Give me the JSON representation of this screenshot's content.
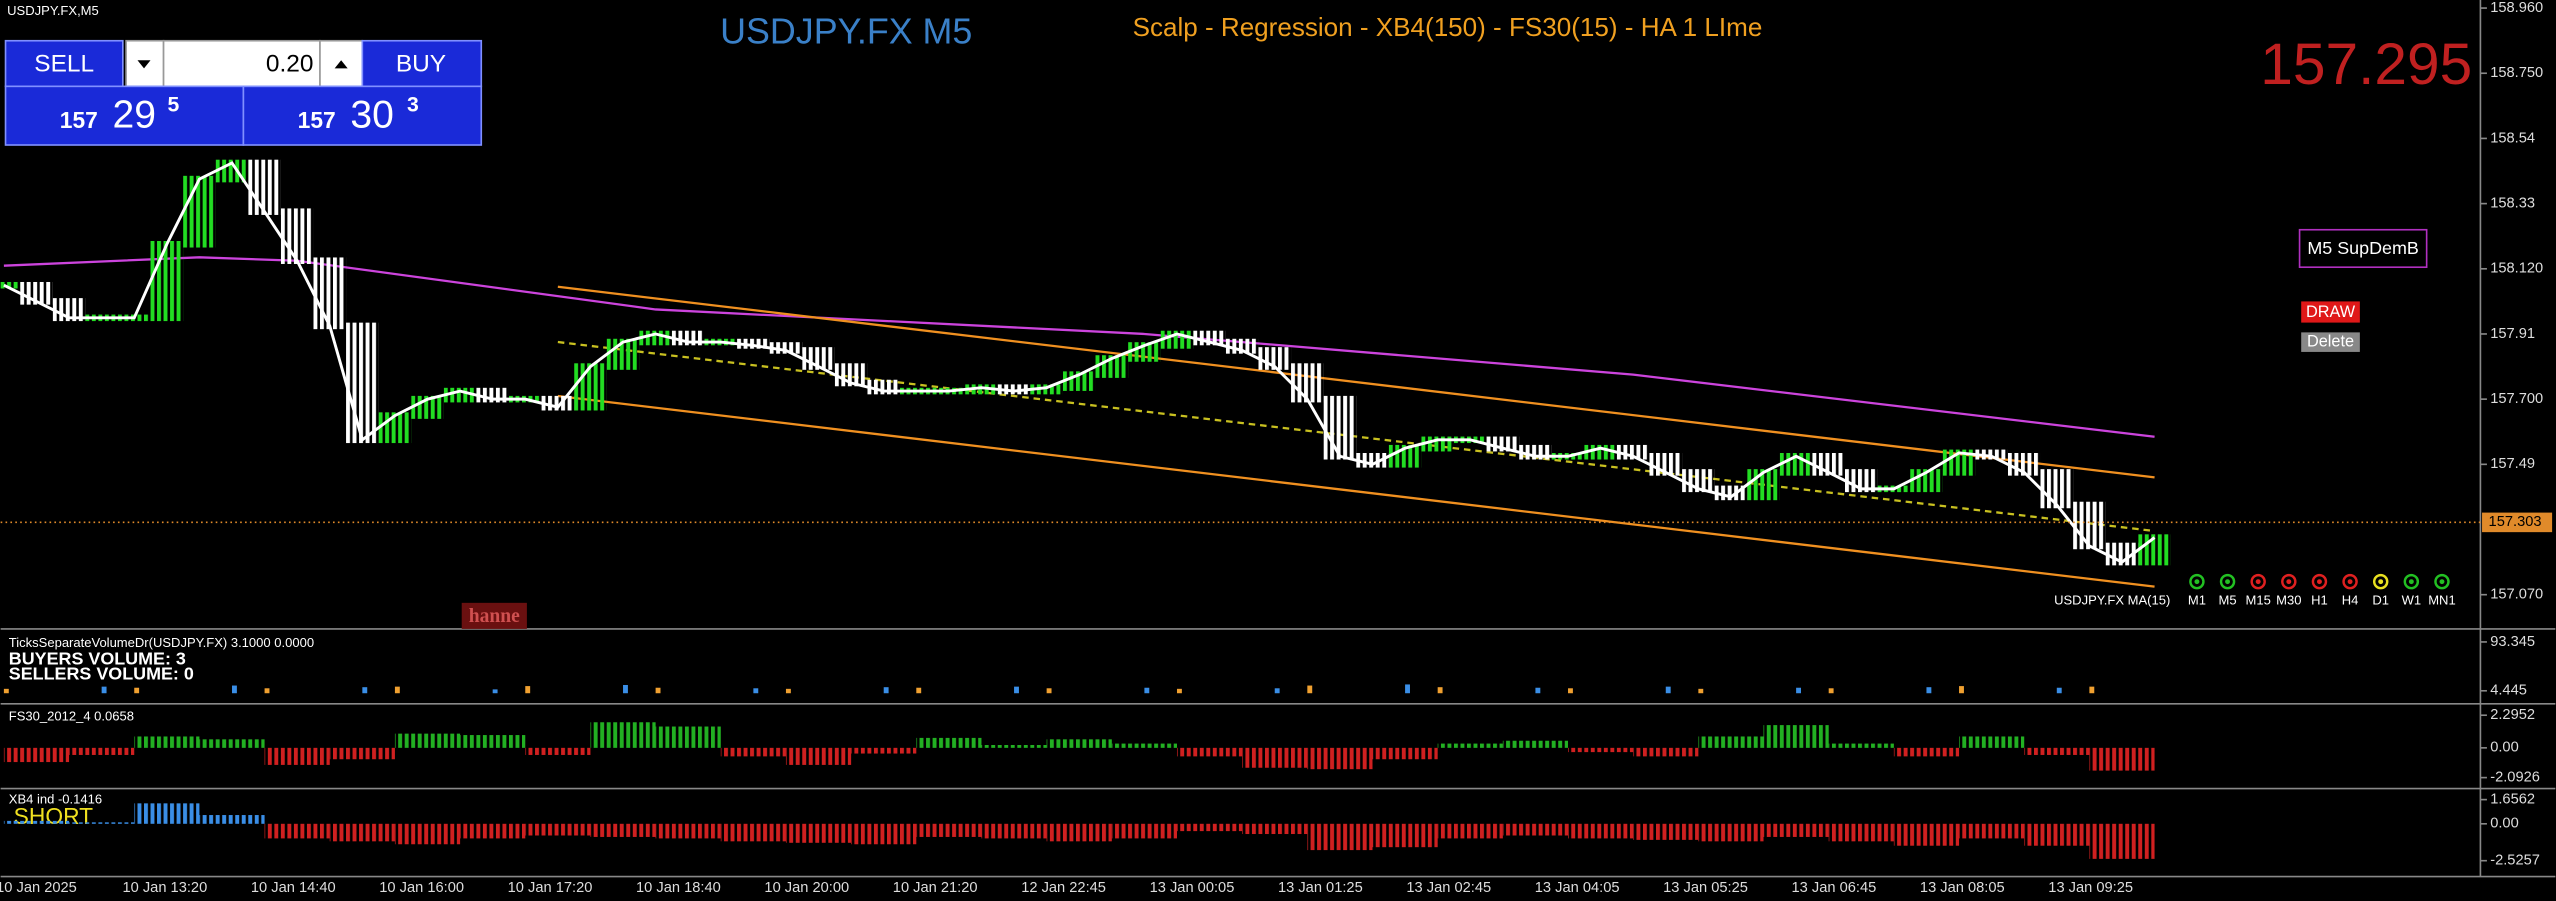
{
  "window_title": "USDJPY.FX,M5",
  "order_panel": {
    "sell": "SELL",
    "buy": "BUY",
    "volume": "0.20",
    "sell_price": {
      "prefix": "157",
      "pips": "29",
      "fraction": "5"
    },
    "buy_price": {
      "prefix": "157",
      "pips": "30",
      "fraction": "3"
    }
  },
  "last_price": "157.295",
  "supdem_label": "M5 SupDemB",
  "buttons": [
    "DRAW",
    "Delete"
  ],
  "watermark": "hanne",
  "timeframes": [
    {
      "label": "M1",
      "color": "#22c022"
    },
    {
      "label": "M5",
      "color": "#22c022"
    },
    {
      "label": "M15",
      "color": "#e02020"
    },
    {
      "label": "M30",
      "color": "#e02020"
    },
    {
      "label": "H1",
      "color": "#e02020"
    },
    {
      "label": "H4",
      "color": "#e02020"
    },
    {
      "label": "D1",
      "color": "#e8e020"
    },
    {
      "label": "W1",
      "color": "#22c022"
    },
    {
      "label": "MN1",
      "color": "#22c022"
    }
  ],
  "chart_data": [
    {
      "type": "candlestick",
      "title": "USDJPY.FX M5",
      "subtitle": "Scalp - Regression - XB4(150) - FS30(15) - HA  1 LIme",
      "ma_label": "USDJPY.FX MA(15)",
      "ma_color": "#ffffff",
      "colors": {
        "up": "#22dd22",
        "down": "#ffffff"
      },
      "values": [
        158.067,
        158.015,
        157.962,
        157.962,
        157.962,
        158.199,
        158.409,
        158.461,
        158.304,
        158.146,
        157.936,
        157.569,
        157.647,
        157.7,
        157.726,
        157.7,
        157.7,
        157.674,
        157.805,
        157.884,
        157.91,
        157.884,
        157.884,
        157.873,
        157.857,
        157.805,
        157.752,
        157.726,
        157.726,
        157.726,
        157.737,
        157.726,
        157.737,
        157.779,
        157.831,
        157.873,
        157.91,
        157.884,
        157.857,
        157.805,
        157.7,
        157.516,
        157.49,
        157.542,
        157.569,
        157.569,
        157.542,
        157.516,
        157.516,
        157.542,
        157.516,
        157.464,
        157.411,
        157.385,
        157.464,
        157.516,
        157.464,
        157.411,
        157.411,
        157.464,
        157.527,
        157.516,
        157.464,
        157.359,
        157.227,
        157.175,
        157.254
      ],
      "overlays": [
        {
          "color": "#cc44dd",
          "x": [
            0,
            6,
            9,
            20,
            35,
            50,
            66
          ],
          "values": [
            158.13,
            158.157,
            158.146,
            157.989,
            157.91,
            157.779,
            157.579
          ]
        },
        {
          "color": "#f09020",
          "x": [
            17,
            66
          ],
          "values": [
            158.062,
            157.448
          ]
        },
        {
          "color": "#c8c020",
          "dashed": true,
          "x": [
            17,
            66
          ],
          "values": [
            157.884,
            157.275
          ]
        },
        {
          "color": "#f09020",
          "x": [
            17,
            66
          ],
          "values": [
            157.71,
            157.096
          ]
        }
      ],
      "ylim": [
        156.965,
        158.986
      ],
      "yticks": [
        {
          "value": 158.96,
          "label": "158.960"
        },
        {
          "value": 158.75,
          "label": "158.750"
        },
        158.54,
        158.33,
        {
          "value": 158.12,
          "label": "158.120"
        },
        157.91,
        {
          "value": 157.7,
          "label": "157.700"
        },
        157.49,
        {
          "value": 157.07,
          "label": "157.070"
        }
      ],
      "price_line": {
        "value": 157.303,
        "label": "157.303"
      },
      "x_labels": [
        "10 Jan 2025",
        "10 Jan 13:20",
        "10 Jan 14:40",
        "10 Jan 16:00",
        "10 Jan 17:20",
        "10 Jan 18:40",
        "10 Jan 20:00",
        "10 Jan 21:20",
        "12 Jan 22:45",
        "13 Jan 00:05",
        "13 Jan 01:25",
        "13 Jan 02:45",
        "13 Jan 04:05",
        "13 Jan 05:25",
        "13 Jan 06:45",
        "13 Jan 08:05",
        "13 Jan 09:25"
      ]
    },
    {
      "type": "volume",
      "title": "TicksSeparateVolumeDr(USDJPY.FX) 3.1000 0.0000",
      "notes": [
        "BUYERS VOLUME: 3",
        "SELLERS VOLUME: 0"
      ],
      "colors": [
        "#f0a030",
        "#3a8ee6"
      ],
      "values": [
        8,
        12,
        10,
        14,
        9,
        11,
        12,
        7,
        13,
        15,
        10,
        9,
        8,
        11,
        10,
        12,
        9,
        10,
        8,
        9,
        14,
        16,
        11,
        10,
        9,
        12,
        8,
        10,
        9,
        11,
        13,
        10,
        12
      ],
      "ylim": [
        -13.4,
        114.1
      ],
      "yticks": [
        93.345,
        4.445
      ]
    },
    {
      "type": "histogram",
      "title": "FS30_2012_4 0.0658",
      "colors": [
        "#22b022",
        "#d02020"
      ],
      "values": [
        -1.0,
        -0.5,
        0.8,
        0.6,
        -1.2,
        -0.8,
        1.0,
        0.9,
        -0.5,
        1.8,
        1.5,
        -0.6,
        -1.2,
        -0.4,
        0.7,
        0.2,
        0.6,
        0.3,
        -0.6,
        -1.4,
        -1.5,
        -0.8,
        0.3,
        0.5,
        -0.3,
        -0.6,
        0.8,
        1.6,
        0.3,
        -0.6,
        0.8,
        -0.5,
        -1.6
      ],
      "ylim": [
        -2.75,
        2.98
      ],
      "yticks": [
        2.2952,
        {
          "value": 0,
          "label": "0.00"
        },
        -2.0926
      ]
    },
    {
      "type": "histogram",
      "title": "XB4 ind -0.1416",
      "signal": "SHORT",
      "colors": [
        "#3a8ee6",
        "#d02020"
      ],
      "values": [
        0.2,
        0.1,
        1.4,
        0.6,
        -1.0,
        -1.2,
        -1.4,
        -1.0,
        -0.8,
        -0.9,
        -1.0,
        -1.2,
        -1.3,
        -1.4,
        -0.9,
        -1.0,
        -1.2,
        -1.0,
        -0.5,
        -0.7,
        -1.8,
        -1.6,
        -1.0,
        -0.8,
        -1.0,
        -1.1,
        -1.2,
        -0.9,
        -1.2,
        -1.5,
        -1.0,
        -1.5,
        -2.4
      ],
      "ylim": [
        -3.5,
        2.3
      ],
      "yticks": [
        1.6562,
        {
          "value": 0,
          "label": "0.00"
        },
        -2.5257
      ]
    }
  ]
}
